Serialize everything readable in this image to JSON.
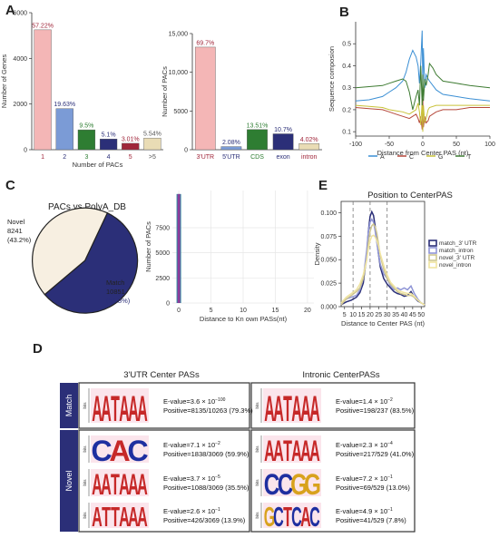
{
  "panels": [
    "A",
    "B",
    "C",
    "D",
    "E"
  ],
  "colors": {
    "pink": "#f4b6b6",
    "blue": "#7b9bd6",
    "green": "#2e7d32",
    "navy": "#2b2f78",
    "darkred": "#a0263a",
    "tan": "#e9dcb5",
    "cream": "#f7efe1",
    "lineA": "#3b8fd4",
    "lineC": "#b5473a",
    "lineG": "#c9c23a",
    "lineT": "#3e7b32"
  },
  "chart_data": [
    {
      "id": "genes",
      "type": "bar",
      "categories": [
        "1",
        "2",
        "3",
        "4",
        "5",
        ">5"
      ],
      "values": [
        5250,
        1800,
        870,
        470,
        280,
        510
      ],
      "data_labels": [
        "57.22%",
        "19.63%",
        "9.5%",
        "5.1%",
        "3.01%",
        "5.54%"
      ],
      "category_colors": [
        "#f4b6b6",
        "#7b9bd6",
        "#2e7d32",
        "#2b2f78",
        "#a0263a",
        "#e9dcb5"
      ],
      "label_colors": [
        "#a0263a",
        "#2b2f78",
        "#2e7d32",
        "#2b2f78",
        "#a0263a",
        "#555555"
      ],
      "tick_colors": [
        "#a0263a",
        "#2b2f78",
        "#2e7d32",
        "#2b2f78",
        "#a0263a",
        "#555555"
      ],
      "xlabel": "Number of PACs",
      "ylabel": "Number of Genes",
      "yticks": [
        0,
        2000,
        4000,
        6000
      ],
      "ylim": [
        0,
        6000
      ]
    },
    {
      "id": "pacs",
      "type": "bar",
      "categories": [
        "3'UTR",
        "5'UTR",
        "CDS",
        "exon",
        "intron"
      ],
      "values": [
        13250,
        400,
        2600,
        2050,
        790
      ],
      "data_labels": [
        "69.7%",
        "2.08%",
        "13.51%",
        "10.7%",
        "4.02%"
      ],
      "category_colors": [
        "#f4b6b6",
        "#7b9bd6",
        "#2e7d32",
        "#2b2f78",
        "#e9dcb5"
      ],
      "label_colors": [
        "#a0263a",
        "#2b2f78",
        "#2e7d32",
        "#2b2f78",
        "#a0263a"
      ],
      "tick_colors": [
        "#a0263a",
        "#2b2f78",
        "#2e7d32",
        "#2b2f78",
        "#a0263a"
      ],
      "ylabel": "Number of PACs",
      "yticks": [
        0,
        5000,
        10000,
        15000
      ],
      "ytick_labels": [
        "0",
        "5000",
        "10,000",
        "15,000"
      ],
      "ylim": [
        0,
        15000
      ]
    },
    {
      "id": "composition",
      "type": "line",
      "xlabel": "Distance from Center  PAS (nt)",
      "ylabel": "Sequence composion",
      "xticks": [
        -100,
        -50,
        0,
        50,
        100
      ],
      "yticks": [
        0.1,
        0.2,
        0.3,
        0.4,
        0.5
      ],
      "xlim": [
        -100,
        100
      ],
      "ylim": [
        0.08,
        0.6
      ],
      "legend": [
        "A",
        "C",
        "G",
        "T"
      ],
      "legend_placement": "bottom",
      "series": [
        {
          "name": "A",
          "color": "#3b8fd4",
          "x": [
            -100,
            -80,
            -60,
            -50,
            -40,
            -30,
            -25,
            -20,
            -15,
            -10,
            -7,
            -5,
            -3,
            -1,
            0,
            1,
            3,
            5,
            8,
            10,
            20,
            30,
            50,
            70,
            100
          ],
          "y": [
            0.24,
            0.245,
            0.26,
            0.28,
            0.3,
            0.33,
            0.37,
            0.43,
            0.47,
            0.44,
            0.4,
            0.32,
            0.42,
            0.56,
            0.3,
            0.48,
            0.3,
            0.36,
            0.34,
            0.33,
            0.29,
            0.27,
            0.26,
            0.25,
            0.24
          ]
        },
        {
          "name": "C",
          "color": "#b5473a",
          "x": [
            -100,
            -80,
            -60,
            -50,
            -40,
            -30,
            -20,
            -15,
            -10,
            -7,
            -5,
            -3,
            -1,
            0,
            1,
            3,
            5,
            8,
            10,
            20,
            30,
            50,
            70,
            100
          ],
          "y": [
            0.21,
            0.205,
            0.2,
            0.19,
            0.18,
            0.17,
            0.16,
            0.17,
            0.18,
            0.16,
            0.14,
            0.17,
            0.11,
            0.25,
            0.12,
            0.17,
            0.14,
            0.15,
            0.17,
            0.19,
            0.2,
            0.2,
            0.21,
            0.21
          ]
        },
        {
          "name": "G",
          "color": "#c9c23a",
          "x": [
            -100,
            -80,
            -60,
            -50,
            -40,
            -30,
            -20,
            -15,
            -10,
            -7,
            -5,
            -3,
            -1,
            0,
            1,
            3,
            5,
            8,
            10,
            20,
            30,
            50,
            70,
            100
          ],
          "y": [
            0.22,
            0.215,
            0.21,
            0.2,
            0.195,
            0.19,
            0.18,
            0.19,
            0.2,
            0.23,
            0.19,
            0.13,
            0.24,
            0.1,
            0.22,
            0.14,
            0.16,
            0.2,
            0.21,
            0.22,
            0.22,
            0.22,
            0.22,
            0.22
          ]
        },
        {
          "name": "T",
          "color": "#3e7b32",
          "x": [
            -100,
            -80,
            -60,
            -50,
            -40,
            -30,
            -25,
            -20,
            -15,
            -10,
            -7,
            -5,
            -3,
            -1,
            0,
            1,
            3,
            5,
            8,
            10,
            15,
            20,
            30,
            50,
            70,
            100
          ],
          "y": [
            0.3,
            0.305,
            0.31,
            0.32,
            0.33,
            0.34,
            0.33,
            0.28,
            0.2,
            0.26,
            0.29,
            0.22,
            0.4,
            0.22,
            0.36,
            0.24,
            0.34,
            0.31,
            0.36,
            0.41,
            0.39,
            0.36,
            0.33,
            0.32,
            0.31,
            0.3
          ]
        }
      ]
    },
    {
      "id": "polya",
      "type": "pie",
      "title": "PACs vs PolyA_DB",
      "slices": [
        {
          "name": "Match",
          "value": 10851,
          "percent": "(56.8%)",
          "color": "#2b2f78"
        },
        {
          "name": "Novel",
          "value": 8241,
          "percent": "(43.2%)",
          "color": "#f7efe1"
        }
      ]
    },
    {
      "id": "distance",
      "type": "bar",
      "xlabel": "Distance to Kn own PASs(nt)",
      "ylabel": "Number of PACs",
      "xticks": [
        0,
        5,
        10,
        15,
        20
      ],
      "yticks": [
        0,
        2500,
        5000,
        7500
      ],
      "xlim": [
        -1,
        21
      ],
      "ylim": [
        0,
        11200
      ],
      "categories": [
        0
      ],
      "values": [
        10851
      ],
      "grid": true
    },
    {
      "id": "density",
      "type": "line",
      "title": "Position to CenterPAS",
      "xlabel": "Distance to Center  PAS (nt)",
      "ylabel": "Density",
      "xticks": [
        5,
        10,
        15,
        20,
        25,
        30,
        35,
        40,
        45,
        50
      ],
      "yticks": [
        0.0,
        0.025,
        0.05,
        0.075,
        0.1
      ],
      "ytick_labels": [
        "0.000",
        "0.025",
        "0.050",
        "0.075",
        "0.100"
      ],
      "xlim": [
        3,
        52
      ],
      "ylim": [
        0,
        0.112
      ],
      "vlines": [
        10,
        20,
        30
      ],
      "legend": [
        "match_3' UTR",
        "match_intron",
        "novel_3' UTR",
        "novel_intron"
      ],
      "legend_placement": "right",
      "series": [
        {
          "name": "match_3' UTR",
          "color": "#2b2f78",
          "x": [
            3,
            6,
            9,
            12,
            14,
            16,
            18,
            19,
            20,
            21,
            22,
            23,
            24,
            25,
            26,
            28,
            30,
            32,
            34,
            36,
            38,
            40,
            42,
            44,
            46,
            48,
            50,
            52
          ],
          "y": [
            0.002,
            0.005,
            0.007,
            0.01,
            0.015,
            0.025,
            0.055,
            0.08,
            0.096,
            0.101,
            0.097,
            0.085,
            0.07,
            0.055,
            0.042,
            0.03,
            0.024,
            0.02,
            0.016,
            0.014,
            0.013,
            0.011,
            0.012,
            0.016,
            0.01,
            0.006,
            0.004,
            0.002
          ]
        },
        {
          "name": "match_intron",
          "color": "#8f95d6",
          "x": [
            3,
            6,
            9,
            12,
            14,
            16,
            18,
            19,
            20,
            21,
            22,
            23,
            24,
            25,
            26,
            28,
            30,
            32,
            34,
            36,
            38,
            40,
            42,
            44,
            46,
            48,
            50,
            52
          ],
          "y": [
            0.003,
            0.008,
            0.01,
            0.012,
            0.018,
            0.03,
            0.06,
            0.08,
            0.09,
            0.093,
            0.09,
            0.08,
            0.068,
            0.055,
            0.045,
            0.035,
            0.03,
            0.022,
            0.018,
            0.02,
            0.018,
            0.02,
            0.018,
            0.022,
            0.014,
            0.008,
            0.004,
            0.002
          ]
        },
        {
          "name": "novel_3' UTR",
          "color": "#cfc690",
          "x": [
            3,
            6,
            9,
            12,
            14,
            16,
            18,
            19,
            20,
            21,
            22,
            23,
            24,
            25,
            26,
            28,
            30,
            32,
            34,
            36,
            38,
            40,
            42,
            44,
            46,
            48,
            50,
            52
          ],
          "y": [
            0.002,
            0.008,
            0.012,
            0.016,
            0.02,
            0.03,
            0.05,
            0.068,
            0.08,
            0.086,
            0.088,
            0.085,
            0.078,
            0.066,
            0.054,
            0.04,
            0.03,
            0.024,
            0.02,
            0.016,
            0.014,
            0.013,
            0.012,
            0.012,
            0.01,
            0.007,
            0.004,
            0.002
          ]
        },
        {
          "name": "novel_intron",
          "color": "#f0e4a0",
          "x": [
            3,
            6,
            9,
            12,
            14,
            16,
            18,
            19,
            20,
            21,
            22,
            23,
            24,
            25,
            26,
            28,
            30,
            32,
            34,
            36,
            38,
            40,
            42,
            44,
            46,
            48,
            50,
            52
          ],
          "y": [
            0.004,
            0.01,
            0.014,
            0.018,
            0.024,
            0.034,
            0.05,
            0.062,
            0.07,
            0.075,
            0.076,
            0.074,
            0.07,
            0.064,
            0.056,
            0.044,
            0.034,
            0.026,
            0.022,
            0.018,
            0.016,
            0.015,
            0.014,
            0.014,
            0.011,
            0.007,
            0.004,
            0.002
          ]
        }
      ]
    }
  ],
  "motifs": {
    "col_headers": [
      "3'UTR Center PASs",
      "Intronic CenterPASs"
    ],
    "row_labels": [
      "Match",
      "Novel"
    ],
    "bits_label": "bits",
    "cells": [
      {
        "row": "match",
        "col": 0,
        "letters": "AATAAA",
        "evalue_base": "E-value=3.6 × 10",
        "evalue_exp": "−100",
        "positive": "Positive=8135/10263 (79.3%)"
      },
      {
        "row": "match",
        "col": 1,
        "letters": "AATAAA",
        "evalue_base": "E-value=1.4 × 10",
        "evalue_exp": "−2",
        "positive": "Positive=198/237 (83.5%)"
      },
      {
        "row": "novel",
        "col": 0,
        "letters": "CAC",
        "evalue_base": "E-value=7.1 × 10",
        "evalue_exp": "−2",
        "positive": "Positive=1838/3069 (59.9%)"
      },
      {
        "row": "novel",
        "col": 1,
        "letters": "AATAAA",
        "evalue_base": "E-value=2.3 × 10",
        "evalue_exp": "−4",
        "positive": "Positive=217/529 (41.0%)"
      },
      {
        "row": "novel",
        "col": 0,
        "letters": "AATAAA",
        "evalue_base": "E-value=3.7 × 10",
        "evalue_exp": "−5",
        "positive": "Positive=1088/3069 (35.5%)"
      },
      {
        "row": "novel",
        "col": 1,
        "letters": "CCGG",
        "evalue_base": "E-value=7.2 × 10",
        "evalue_exp": "−1",
        "positive": "Positive=69/529 (13.0%)"
      },
      {
        "row": "novel",
        "col": 0,
        "letters": "ATTAAA",
        "evalue_base": "E-value=2.6 × 10",
        "evalue_exp": "−1",
        "positive": "Positive=426/3069 (13.9%)"
      },
      {
        "row": "novel",
        "col": 1,
        "letters": "GCTCAC",
        "evalue_base": "E-value=4.9 × 10",
        "evalue_exp": "−1",
        "positive": "Positive=41/529 (7.8%)"
      }
    ]
  }
}
